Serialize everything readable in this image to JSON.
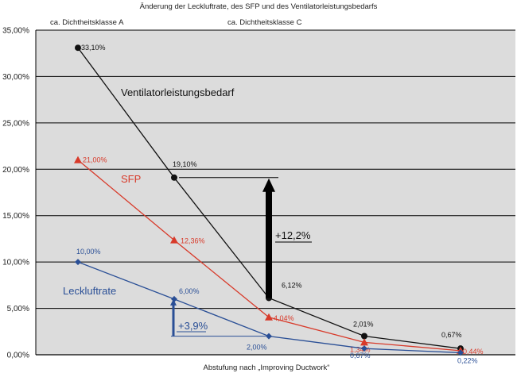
{
  "chart_data": {
    "type": "line",
    "title": "Änderung der Leckluftrate, des SFP und des Ventilatorleistungsbedarfs",
    "xlabel": "Abstufung nach „Improving Ductwork“",
    "ylabel": "",
    "x_annotations": [
      "ca. Dichtheitsklasse A",
      "ca. Dichtheitsklasse C"
    ],
    "ylim": [
      0,
      35
    ],
    "y_ticks": [
      "0,00%",
      "5,00%",
      "10,00%",
      "15,00%",
      "20,00%",
      "25,00%",
      "30,00%",
      "35,00%"
    ],
    "grid": "horizontal",
    "x_positions": [
      1,
      2,
      3,
      4,
      5
    ],
    "series": [
      {
        "name": "Ventilatorleistungsbedarf",
        "color": "#111111",
        "marker": "circle",
        "values": [
          33.1,
          19.1,
          6.12,
          2.01,
          0.67
        ],
        "labels": [
          "33,10%",
          "19,10%",
          "6,12%",
          "2,01%",
          "0,67%"
        ]
      },
      {
        "name": "SFP",
        "color": "#d83a2a",
        "marker": "triangle",
        "values": [
          21.0,
          12.36,
          4.04,
          1.34,
          0.44
        ],
        "labels": [
          "21,00%",
          "12,36%",
          "4,04%",
          "1,34%",
          "0,44%"
        ]
      },
      {
        "name": "Leckluftrate",
        "color": "#2a4f96",
        "marker": "diamond",
        "values": [
          10.0,
          6.0,
          2.0,
          0.67,
          0.22
        ],
        "labels": [
          "10,00%",
          "6,00%",
          "2,00%",
          "0,67%",
          "0,22%"
        ]
      }
    ],
    "annotations": [
      {
        "text": "+12,2%",
        "color": "#111111"
      },
      {
        "text": "+3,9%",
        "color": "#2a4f96"
      }
    ]
  }
}
